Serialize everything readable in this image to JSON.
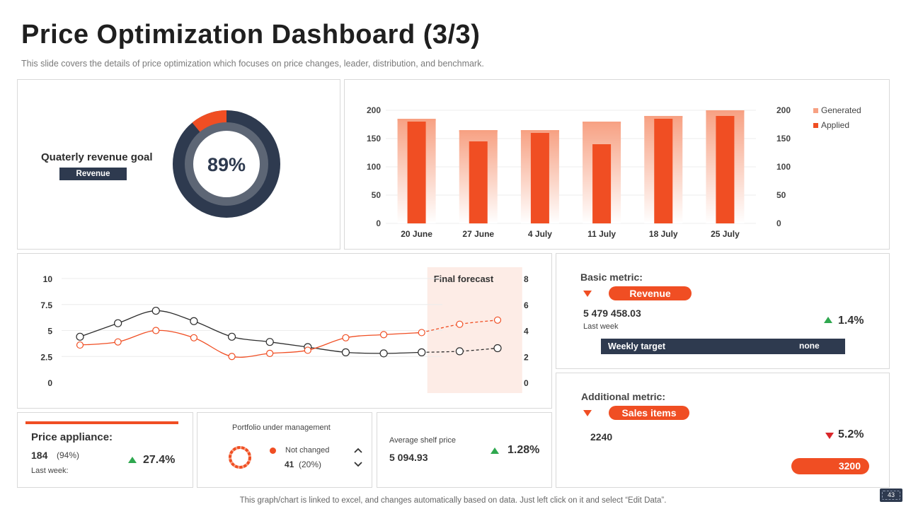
{
  "header": {
    "title": "Price Optimization Dashboard (3/3)",
    "subtitle": "This slide covers the details of price optimization which focuses on price changes, leader, distribution, and benchmark."
  },
  "goal": {
    "label": "Quaterly revenue goal",
    "tag": "Revenue",
    "percent_text": "89%",
    "percent": 89
  },
  "colors": {
    "orange": "#f04e23",
    "light_orange": "#f7a183",
    "navy": "#2e3a4f",
    "grey_ring": "#5d6675",
    "black_line": "#2d2d2d",
    "forecast_bg": "#fdece6",
    "green": "#2fa84f",
    "red": "#d9262a"
  },
  "chart_data": [
    {
      "type": "bar",
      "categories": [
        "20 June",
        "27 June",
        "4 July",
        "11 July",
        "18 July",
        "25 July"
      ],
      "series": [
        {
          "name": "Generated",
          "values": [
            185,
            165,
            165,
            180,
            190,
            200
          ]
        },
        {
          "name": "Applied",
          "values": [
            180,
            145,
            160,
            140,
            185,
            190
          ]
        }
      ],
      "yticks": [
        "0",
        "50",
        "100",
        "150",
        "200"
      ],
      "ylim": [
        0,
        200
      ],
      "y2lim": [
        0,
        200
      ],
      "legend": "right",
      "grid": true
    },
    {
      "type": "line",
      "forecast_label": "Final forecast",
      "forecast_from_index": 9,
      "ylim": [
        0,
        10
      ],
      "y2lim": [
        0,
        8
      ],
      "yticks": [
        "0",
        "2.5",
        "5",
        "7.5",
        "10"
      ],
      "y2ticks": [
        "0",
        "2",
        "4",
        "6",
        "8"
      ],
      "series": [
        {
          "values": [
            4.4,
            5.7,
            6.9,
            5.9,
            4.4,
            3.9,
            3.4,
            2.9,
            2.8,
            2.9,
            3.0,
            3.3
          ]
        },
        {
          "values": [
            3.6,
            3.9,
            5.0,
            4.3,
            2.5,
            2.8,
            3.1,
            4.3,
            4.6,
            4.8,
            5.6,
            6.0
          ]
        }
      ],
      "grid": true
    },
    {
      "type": "pie",
      "values": [
        100
      ],
      "note": "portfolio ring"
    }
  ],
  "basic": {
    "label": "Basic metric:",
    "pill": "Revenue",
    "value": "5 479 458.03",
    "period": "Last week",
    "change": "1.4%",
    "target_label": "Weekly target",
    "target_value": "none"
  },
  "additional": {
    "label": "Additional metric:",
    "pill": "Sales items",
    "value": "2240",
    "change": "5.2%",
    "target_value": "3200"
  },
  "price": {
    "label": "Price appliance:",
    "value": "184",
    "share": "(94%)",
    "period": "Last week:",
    "change": "27.4%"
  },
  "portfolio": {
    "title": "Portfolio under management",
    "legend": "Not changed",
    "value": "41",
    "share": "(20%)"
  },
  "shelf": {
    "label": "Average shelf price",
    "value": "5 094.93",
    "change": "1.28%"
  },
  "footer": {
    "note": "This graph/chart is linked to excel,  and changes automatically based on data. Just left click on it and select “Edit Data”.",
    "page": "43"
  }
}
